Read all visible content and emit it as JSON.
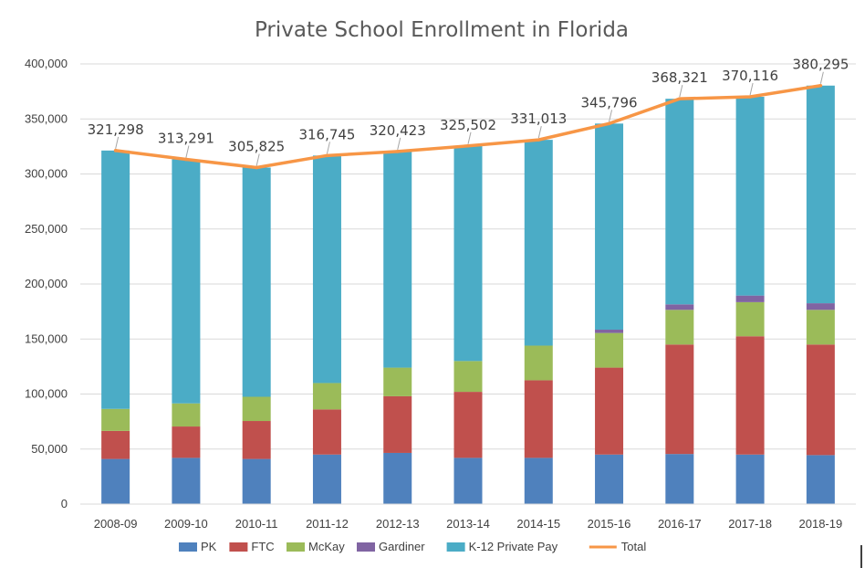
{
  "chart_data": {
    "type": "bar",
    "stacked": true,
    "title": "Private School Enrollment in Florida",
    "categories": [
      "2008-09",
      "2009-10",
      "2010-11",
      "2011-12",
      "2012-13",
      "2013-14",
      "2014-15",
      "2015-16",
      "2016-17",
      "2017-18",
      "2018-19"
    ],
    "series": [
      {
        "name": "PK",
        "type": "bar",
        "color": "#4f81bd",
        "values": [
          41000,
          42000,
          41000,
          45000,
          46500,
          42000,
          42000,
          45000,
          45500,
          45000,
          44500
        ]
      },
      {
        "name": "FTC",
        "type": "bar",
        "color": "#c0504d",
        "values": [
          25500,
          28500,
          34500,
          41000,
          51500,
          60000,
          70500,
          79000,
          99500,
          107500,
          100500
        ]
      },
      {
        "name": "McKay",
        "type": "bar",
        "color": "#9bbb59",
        "values": [
          20000,
          21000,
          22000,
          24000,
          26000,
          28000,
          31500,
          31500,
          31500,
          31000,
          31500
        ]
      },
      {
        "name": "Gardiner",
        "type": "bar",
        "color": "#8064a2",
        "values": [
          0,
          0,
          0,
          0,
          0,
          0,
          0,
          3000,
          5000,
          6000,
          6000
        ]
      },
      {
        "name": "K-12 Private Pay",
        "type": "bar",
        "color": "#4bacc6",
        "values": [
          234798,
          221791,
          208325,
          206745,
          196423,
          195502,
          187013,
          187296,
          186821,
          180616,
          197795
        ]
      },
      {
        "name": "Total",
        "type": "line",
        "color": "#f79646",
        "values": [
          321298,
          313291,
          305825,
          316745,
          320423,
          325502,
          331013,
          345796,
          368321,
          370116,
          380295
        ]
      }
    ],
    "data_labels": [
      "321,298",
      "313,291",
      "305,825",
      "316,745",
      "320,423",
      "325,502",
      "331,013",
      "345,796",
      "368,321",
      "370,116",
      "380,295"
    ],
    "ylim": [
      0,
      400000
    ],
    "yticks": [
      0,
      50000,
      100000,
      150000,
      200000,
      250000,
      300000,
      350000,
      400000
    ],
    "ytick_labels": [
      "0",
      "50,000",
      "100,000",
      "150,000",
      "200,000",
      "250,000",
      "300,000",
      "350,000",
      "400,000"
    ],
    "grid": true,
    "legend_position": "bottom"
  }
}
